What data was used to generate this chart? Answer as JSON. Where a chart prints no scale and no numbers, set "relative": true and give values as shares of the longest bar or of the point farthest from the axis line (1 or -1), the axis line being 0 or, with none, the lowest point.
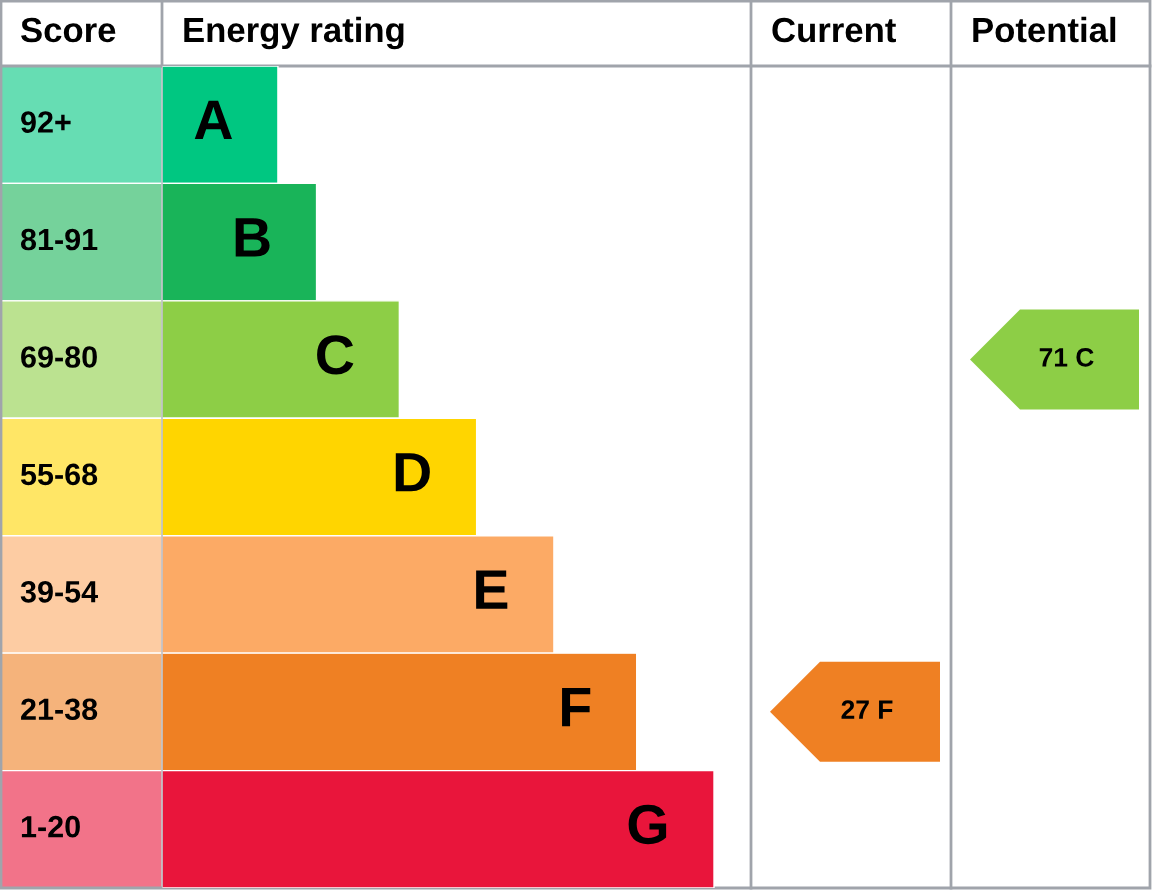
{
  "chart_data": {
    "type": "bar",
    "orientation": "horizontal",
    "relative": true,
    "categories": [
      "A",
      "B",
      "C",
      "D",
      "E",
      "F",
      "G"
    ],
    "values": [
      0.21,
      0.28,
      0.43,
      0.57,
      0.71,
      0.86,
      1.0
    ],
    "colors": [
      "#00c781",
      "#19b459",
      "#8dce46",
      "#ffd500",
      "#fcaa65",
      "#ef8023",
      "#e9153b"
    ],
    "annotations": [
      "Score",
      "Energy rating",
      "Current",
      "Potential",
      "92+",
      "81-91",
      "69-80",
      "55-68",
      "39-54",
      "21-38",
      "1-20",
      "27 F",
      "71 C"
    ]
  }
}
